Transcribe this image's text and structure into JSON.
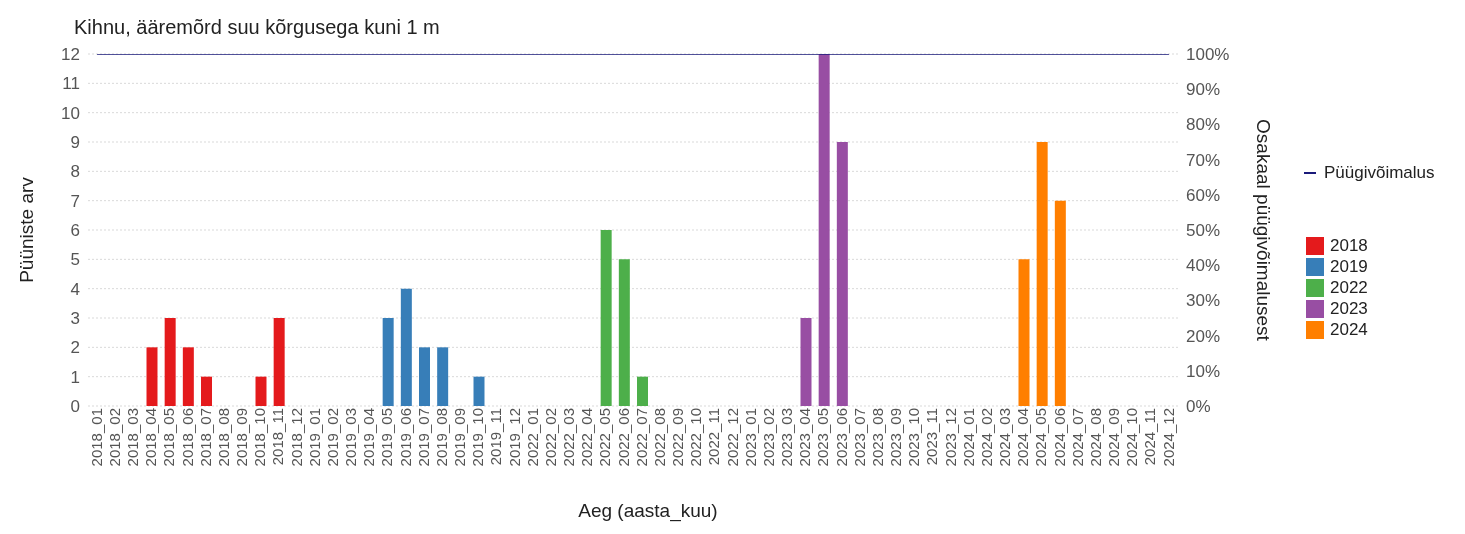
{
  "chart_data": {
    "type": "bar",
    "title": "Kihnu, ääremõrd suu kõrgusega kuni 1 m",
    "xlabel": "Aeg (aasta_kuu)",
    "ylabel": "Püüniste arv",
    "y2label": "Osakaal püügivõimalusest",
    "categories": [
      "2018_01",
      "2018_02",
      "2018_03",
      "2018_04",
      "2018_05",
      "2018_06",
      "2018_07",
      "2018_08",
      "2018_09",
      "2018_10",
      "2018_11",
      "2018_12",
      "2019_01",
      "2019_02",
      "2019_03",
      "2019_04",
      "2019_05",
      "2019_06",
      "2019_07",
      "2019_08",
      "2019_09",
      "2019_10",
      "2019_11",
      "2019_12",
      "2022_01",
      "2022_02",
      "2022_03",
      "2022_04",
      "2022_05",
      "2022_06",
      "2022_07",
      "2022_08",
      "2022_09",
      "2022_10",
      "2022_11",
      "2022_12",
      "2023_01",
      "2023_02",
      "2023_03",
      "2023_04",
      "2023_05",
      "2023_06",
      "2023_07",
      "2023_08",
      "2023_09",
      "2023_10",
      "2023_11",
      "2023_12",
      "2024_01",
      "2024_02",
      "2024_03",
      "2024_04",
      "2024_05",
      "2024_06",
      "2024_07",
      "2024_08",
      "2024_09",
      "2024_10",
      "2024_11",
      "2024_12"
    ],
    "stacked": true,
    "series": [
      {
        "name": "2018",
        "color": "#e41a1c",
        "values": [
          null,
          null,
          null,
          2,
          3,
          2,
          1,
          null,
          null,
          1,
          3,
          null,
          null,
          null,
          null,
          null,
          null,
          null,
          null,
          null,
          null,
          null,
          null,
          null,
          null,
          null,
          null,
          null,
          null,
          null,
          null,
          null,
          null,
          null,
          null,
          null,
          null,
          null,
          null,
          null,
          null,
          null,
          null,
          null,
          null,
          null,
          null,
          null,
          null,
          null,
          null,
          null,
          null,
          null,
          null,
          null,
          null,
          null,
          null,
          null
        ]
      },
      {
        "name": "2019",
        "color": "#377eb8",
        "values": [
          null,
          null,
          null,
          null,
          null,
          null,
          null,
          null,
          null,
          null,
          null,
          null,
          null,
          null,
          null,
          null,
          3,
          4,
          2,
          2,
          null,
          1,
          null,
          null,
          null,
          null,
          null,
          null,
          null,
          null,
          null,
          null,
          null,
          null,
          null,
          null,
          null,
          null,
          null,
          null,
          null,
          null,
          null,
          null,
          null,
          null,
          null,
          null,
          null,
          null,
          null,
          null,
          null,
          null,
          null,
          null,
          null,
          null,
          null,
          null
        ]
      },
      {
        "name": "2022",
        "color": "#4daf4a",
        "values": [
          null,
          null,
          null,
          null,
          null,
          null,
          null,
          null,
          null,
          null,
          null,
          null,
          null,
          null,
          null,
          null,
          null,
          null,
          null,
          null,
          null,
          null,
          null,
          null,
          null,
          null,
          null,
          null,
          6,
          5,
          1,
          null,
          null,
          null,
          null,
          null,
          null,
          null,
          null,
          null,
          null,
          null,
          null,
          null,
          null,
          null,
          null,
          null,
          null,
          null,
          null,
          null,
          null,
          null,
          null,
          null,
          null,
          null,
          null,
          null
        ]
      },
      {
        "name": "2023",
        "color": "#984ea3",
        "values": [
          null,
          null,
          null,
          null,
          null,
          null,
          null,
          null,
          null,
          null,
          null,
          null,
          null,
          null,
          null,
          null,
          null,
          null,
          null,
          null,
          null,
          null,
          null,
          null,
          null,
          null,
          null,
          null,
          null,
          null,
          null,
          null,
          null,
          null,
          null,
          null,
          null,
          null,
          null,
          3,
          12,
          9,
          null,
          null,
          null,
          null,
          null,
          null,
          null,
          null,
          null,
          null,
          null,
          null,
          null,
          null,
          null,
          null,
          null,
          null
        ]
      },
      {
        "name": "2024",
        "color": "#ff7f00",
        "values": [
          null,
          null,
          null,
          null,
          null,
          null,
          null,
          null,
          null,
          null,
          null,
          null,
          null,
          null,
          null,
          null,
          null,
          null,
          null,
          null,
          null,
          null,
          null,
          null,
          null,
          null,
          null,
          null,
          null,
          null,
          null,
          null,
          null,
          null,
          null,
          null,
          null,
          null,
          null,
          null,
          null,
          null,
          null,
          null,
          null,
          null,
          null,
          null,
          null,
          null,
          null,
          5,
          9,
          7,
          null,
          null,
          null,
          null,
          null,
          null
        ]
      },
      {
        "name": "Püügivõimalus",
        "type": "line",
        "color": "#1a1a7a",
        "values": [
          12,
          12,
          12,
          12,
          12,
          12,
          12,
          12,
          12,
          12,
          12,
          12,
          12,
          12,
          12,
          12,
          12,
          12,
          12,
          12,
          12,
          12,
          12,
          12,
          12,
          12,
          12,
          12,
          12,
          12,
          12,
          12,
          12,
          12,
          12,
          12,
          12,
          12,
          12,
          12,
          12,
          12,
          12,
          12,
          12,
          12,
          12,
          12,
          12,
          12,
          12,
          12,
          12,
          12,
          12,
          12,
          12,
          12,
          12,
          12
        ]
      }
    ],
    "ylim": [
      0,
      12
    ],
    "yticks": [
      0,
      1,
      2,
      3,
      4,
      5,
      6,
      7,
      8,
      9,
      10,
      11,
      12
    ],
    "y2lim": [
      0,
      100
    ],
    "y2ticks": [
      {
        "value": 0,
        "label": "0%"
      },
      {
        "value": 10,
        "label": "10%"
      },
      {
        "value": 20,
        "label": "20%"
      },
      {
        "value": 30,
        "label": "30%"
      },
      {
        "value": 40,
        "label": "40%"
      },
      {
        "value": 50,
        "label": "50%"
      },
      {
        "value": 60,
        "label": "60%"
      },
      {
        "value": 70,
        "label": "70%"
      },
      {
        "value": 80,
        "label": "80%"
      },
      {
        "value": 90,
        "label": "90%"
      },
      {
        "value": 100,
        "label": "100%"
      }
    ],
    "grid": "y",
    "legend": "right",
    "marker": "none",
    "line_style": "solid"
  }
}
